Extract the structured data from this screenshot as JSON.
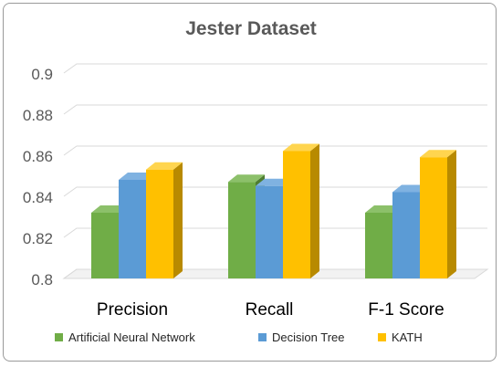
{
  "chart_data": {
    "type": "bar",
    "title": "Jester Dataset",
    "categories": [
      "Precision",
      "Recall",
      "F-1 Score"
    ],
    "series": [
      {
        "name": "Artificial Neural Network",
        "values": [
          0.832,
          0.847,
          0.832
        ],
        "color": "#70ad47",
        "side": "#4e7d31",
        "top": "#8cc06a"
      },
      {
        "name": "Decision Tree",
        "values": [
          0.848,
          0.845,
          0.842
        ],
        "color": "#5b9bd5",
        "side": "#2e6ea6",
        "top": "#7fb2e1"
      },
      {
        "name": "KATH",
        "values": [
          0.853,
          0.862,
          0.859
        ],
        "color": "#ffc000",
        "side": "#b88a00",
        "top": "#ffd54f"
      }
    ],
    "yticks": [
      "0.8",
      "0.82",
      "0.84",
      "0.86",
      "0.88",
      "0.9"
    ],
    "ylim": [
      0.8,
      0.9
    ],
    "grid": true,
    "legend_position": "bottom"
  }
}
